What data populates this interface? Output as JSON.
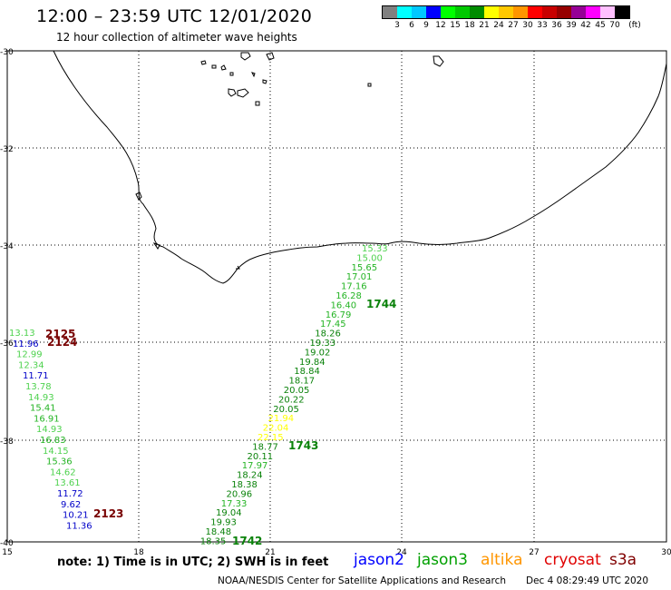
{
  "header": {
    "title": "12:00 – 23:59 UTC 12/01/2020",
    "subtitle": "12 hour collection of altimeter wave heights"
  },
  "scale": {
    "unit": "(ft)",
    "colors": [
      "#808080",
      "#00ffff",
      "#00c8ff",
      "#0000ff",
      "#00ff00",
      "#00c800",
      "#008c00",
      "#ffff00",
      "#ffc800",
      "#ff9600",
      "#ff0000",
      "#c80000",
      "#960000",
      "#960096",
      "#ff00ff",
      "#ffc0ff",
      "#000000"
    ],
    "labels": [
      "3",
      "6",
      "9",
      "12",
      "15",
      "18",
      "21",
      "24",
      "27",
      "30",
      "33",
      "36",
      "39",
      "42",
      "45",
      "70"
    ]
  },
  "axes": {
    "lat_labels": [
      "-30",
      "-32",
      "-34",
      "-36",
      "-38",
      "-40"
    ],
    "lon_labels": [
      "15",
      "18",
      "21",
      "24",
      "27",
      "30"
    ]
  },
  "tracks": {
    "jason3_east": [
      {
        "v": "15.33",
        "c": "#4fd24f"
      },
      {
        "v": "15.00",
        "c": "#4fd24f"
      },
      {
        "v": "15.65",
        "c": "#24b424"
      },
      {
        "v": "17.01",
        "c": "#24b424"
      },
      {
        "v": "17.16",
        "c": "#24b424"
      },
      {
        "v": "16.28",
        "c": "#24b424"
      },
      {
        "v": "16.40",
        "c": "#24b424"
      },
      {
        "v": "16.79",
        "c": "#24b424"
      },
      {
        "v": "17.45",
        "c": "#24b424"
      },
      {
        "v": "18.26",
        "c": "#0a820a"
      },
      {
        "v": "19.33",
        "c": "#0a820a"
      },
      {
        "v": "19.02",
        "c": "#0a820a"
      },
      {
        "v": "19.84",
        "c": "#0a820a"
      },
      {
        "v": "18.84",
        "c": "#0a820a"
      },
      {
        "v": "18.17",
        "c": "#0a820a"
      },
      {
        "v": "20.05",
        "c": "#0a820a"
      },
      {
        "v": "20.22",
        "c": "#0a820a"
      },
      {
        "v": "20.05",
        "c": "#0a820a"
      },
      {
        "v": "21.94",
        "c": "#ffff00"
      },
      {
        "v": "22.04",
        "c": "#ffff00"
      },
      {
        "v": "22.15",
        "c": "#ffff00"
      },
      {
        "v": "18.77",
        "c": "#0a820a"
      },
      {
        "v": "20.11",
        "c": "#0a820a"
      },
      {
        "v": "17.97",
        "c": "#24b424"
      },
      {
        "v": "18.24",
        "c": "#0a820a"
      },
      {
        "v": "18.38",
        "c": "#0a820a"
      },
      {
        "v": "20.96",
        "c": "#0a820a"
      },
      {
        "v": "17.33",
        "c": "#24b424"
      },
      {
        "v": "19.04",
        "c": "#0a820a"
      },
      {
        "v": "19.93",
        "c": "#0a820a"
      },
      {
        "v": "18.48",
        "c": "#0a820a"
      },
      {
        "v": "18.35",
        "c": "#0a820a"
      }
    ],
    "west": [
      {
        "v": "13.13",
        "c": "#4fd24f"
      },
      {
        "v": "11.96",
        "c": "#0000c8"
      },
      {
        "v": "12.99",
        "c": "#4fd24f"
      },
      {
        "v": "12.34",
        "c": "#4fd24f"
      },
      {
        "v": "11.71",
        "c": "#0000c8"
      },
      {
        "v": "13.78",
        "c": "#4fd24f"
      },
      {
        "v": "14.93",
        "c": "#4fd24f"
      },
      {
        "v": "15.41",
        "c": "#24b424"
      },
      {
        "v": "16.91",
        "c": "#24b424"
      },
      {
        "v": "14.93",
        "c": "#4fd24f"
      },
      {
        "v": "16.83",
        "c": "#24b424"
      },
      {
        "v": "14.15",
        "c": "#4fd24f"
      },
      {
        "v": "15.36",
        "c": "#24b424"
      },
      {
        "v": "14.62",
        "c": "#4fd24f"
      },
      {
        "v": "13.61",
        "c": "#4fd24f"
      },
      {
        "v": "11.72",
        "c": "#0000c8"
      },
      {
        "v": "9.62",
        "c": "#0000c8"
      },
      {
        "v": "10.21",
        "c": "#0000c8"
      },
      {
        "v": "11.36",
        "c": "#0000c8"
      }
    ],
    "time_labels": [
      {
        "t": "1744",
        "c": "#0a820a"
      },
      {
        "t": "1743",
        "c": "#0a820a"
      },
      {
        "t": "1742",
        "c": "#0a820a"
      },
      {
        "t": "2125",
        "c": "#780000"
      },
      {
        "t": "2124",
        "c": "#780000"
      },
      {
        "t": "2123",
        "c": "#780000"
      }
    ]
  },
  "footer": {
    "note": "note:  1) Time is in UTC;  2) SWH is in feet",
    "missions": [
      {
        "name": "jason2",
        "color": "#0000ff"
      },
      {
        "name": "jason3",
        "color": "#00a000"
      },
      {
        "name": "altika",
        "color": "#ff9600"
      },
      {
        "name": "cryosat",
        "color": "#e00000"
      },
      {
        "name": "s3a",
        "color": "#800000"
      }
    ],
    "credit": "NOAA/NESDIS Center for Satellite Applications and Research",
    "timestamp": "Dec  4 08:29:49 UTC 2020"
  }
}
